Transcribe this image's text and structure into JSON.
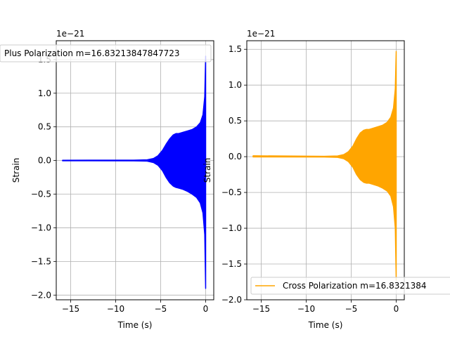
{
  "chart_data": [
    {
      "type": "line",
      "title": "",
      "xlabel": "Time (s)",
      "ylabel": "Strain",
      "offset_text": "1e−21",
      "xlim": [
        -16.6,
        0.9
      ],
      "ylim": [
        -2.07,
        1.78
      ],
      "xticks": [
        -15,
        -10,
        -5,
        0
      ],
      "xtick_labels": [
        "−15",
        "−10",
        "−5",
        "0"
      ],
      "yticks": [
        -2.0,
        -1.5,
        -1.0,
        -0.5,
        0.0,
        0.5,
        1.0,
        1.5
      ],
      "ytick_labels": [
        "−2.0",
        "−1.5",
        "−1.0",
        "−0.5",
        "0.0",
        "0.5",
        "1.0",
        "1.5"
      ],
      "grid": true,
      "legend_position": "top-left",
      "series": [
        {
          "name": "Plus Polarization m=16.83213847847723",
          "color": "#0000ff",
          "envelope": {
            "t": [
              -15.9,
              -8,
              -6.5,
              -5.8,
              -5.3,
              -4.8,
              -4.4,
              -4.0,
              -3.6,
              -3.3,
              -3.0,
              -2.5,
              -2.0,
              -1.5,
              -1.0,
              -0.6,
              -0.3,
              -0.1,
              0.0
            ],
            "upper": [
              0.004,
              0.005,
              0.01,
              0.03,
              0.07,
              0.15,
              0.24,
              0.32,
              0.38,
              0.4,
              0.4,
              0.42,
              0.44,
              0.46,
              0.5,
              0.56,
              0.68,
              0.95,
              1.55
            ],
            "lower": [
              -0.004,
              -0.005,
              -0.01,
              -0.03,
              -0.07,
              -0.15,
              -0.25,
              -0.33,
              -0.38,
              -0.4,
              -0.41,
              -0.43,
              -0.46,
              -0.5,
              -0.55,
              -0.63,
              -0.78,
              -1.1,
              -1.9
            ]
          }
        }
      ]
    },
    {
      "type": "line",
      "title": "",
      "xlabel": "Time (s)",
      "ylabel": "Strain",
      "offset_text": "1e−21",
      "xlim": [
        -16.6,
        0.9
      ],
      "ylim": [
        -2.0,
        1.62
      ],
      "xticks": [
        -15,
        -10,
        -5,
        0
      ],
      "xtick_labels": [
        "−15",
        "−10",
        "−5",
        "0"
      ],
      "yticks": [
        -2.0,
        -1.5,
        -1.0,
        -0.5,
        0.0,
        0.5,
        1.0,
        1.5
      ],
      "ytick_labels": [
        "−2.0",
        "−1.5",
        "−1.0",
        "−0.5",
        "0.0",
        "0.5",
        "1.0",
        "1.5"
      ],
      "grid": true,
      "legend_position": "bottom-left",
      "series": [
        {
          "name": "Cross Polarization m=16.8321384",
          "color": "#ffa500",
          "envelope": {
            "t": [
              -15.9,
              -8,
              -6.5,
              -5.8,
              -5.3,
              -4.8,
              -4.4,
              -4.0,
              -3.6,
              -3.3,
              -3.0,
              -2.5,
              -2.0,
              -1.5,
              -1.0,
              -0.6,
              -0.3,
              -0.1,
              0.0
            ],
            "upper": [
              0.012,
              0.005,
              0.01,
              0.03,
              0.07,
              0.15,
              0.25,
              0.33,
              0.37,
              0.38,
              0.38,
              0.4,
              0.42,
              0.44,
              0.48,
              0.55,
              0.68,
              0.95,
              1.47
            ],
            "lower": [
              -0.004,
              -0.005,
              -0.01,
              -0.03,
              -0.07,
              -0.15,
              -0.25,
              -0.32,
              -0.36,
              -0.37,
              -0.37,
              -0.39,
              -0.41,
              -0.44,
              -0.48,
              -0.55,
              -0.7,
              -1.0,
              -1.72
            ]
          }
        }
      ]
    }
  ]
}
